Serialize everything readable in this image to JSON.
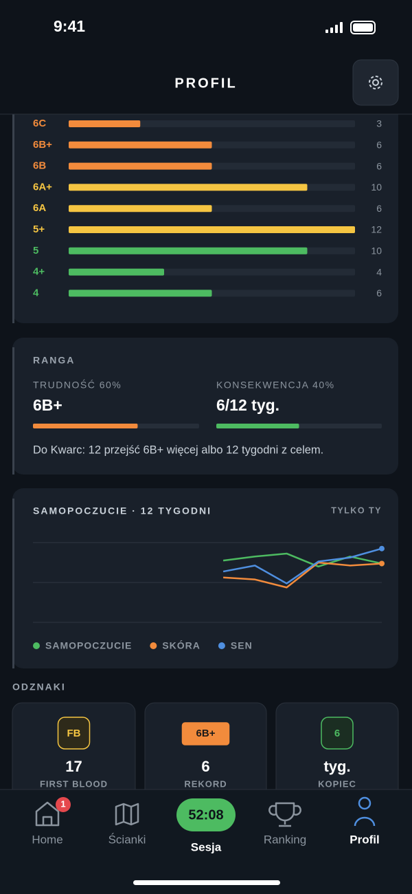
{
  "status": {
    "time": "9:41"
  },
  "header": {
    "title": "PROFIL"
  },
  "grades": [
    {
      "label": "6C",
      "value": 3,
      "color": "#f28b3c"
    },
    {
      "label": "6B+",
      "value": 6,
      "color": "#f28b3c"
    },
    {
      "label": "6B",
      "value": 6,
      "color": "#f28b3c"
    },
    {
      "label": "6A+",
      "value": 10,
      "color": "#f5c542"
    },
    {
      "label": "6A",
      "value": 6,
      "color": "#f5c542"
    },
    {
      "label": "5+",
      "value": 12,
      "color": "#f5c542"
    },
    {
      "label": "5",
      "value": 10,
      "color": "#4dbb61"
    },
    {
      "label": "4+",
      "value": 4,
      "color": "#4dbb61"
    },
    {
      "label": "4",
      "value": 6,
      "color": "#4dbb61"
    }
  ],
  "rank": {
    "title": "RANGA",
    "difficulty": {
      "label": "TRUDNOŚĆ 60%",
      "value": "6B+",
      "progress": 0.63,
      "color": "#f28b3c"
    },
    "consistency": {
      "label": "KONSEKWENCJA 40%",
      "value": "6/12 tyg.",
      "progress": 0.5,
      "color": "#4dbb61"
    },
    "note": "Do Kwarc: 12 przejść 6B+ więcej albo 12 tygodni z celem."
  },
  "wellbeing": {
    "title": "SAMOPOCZUCIE · 12 TYGODNI",
    "badge": "TYLKO TY",
    "chart_data": {
      "type": "line",
      "ylim": [
        1,
        5
      ],
      "yticks": [
        1,
        3,
        5
      ],
      "grid": true,
      "series": [
        {
          "name": "SAMOPOCZUCIE",
          "color": "#4dbb61",
          "values": [
            null,
            null,
            null,
            null,
            null,
            null,
            4.1,
            4.3,
            4.45,
            3.8,
            4.3,
            3.95
          ]
        },
        {
          "name": "SKÓRA",
          "color": "#f28b3c",
          "values": [
            null,
            null,
            null,
            null,
            null,
            null,
            3.25,
            3.15,
            2.75,
            4.0,
            3.85,
            3.95
          ]
        },
        {
          "name": "SEN",
          "color": "#4f8fe0",
          "values": [
            null,
            null,
            null,
            null,
            null,
            null,
            3.55,
            3.85,
            2.95,
            4.05,
            4.25,
            4.7
          ]
        }
      ]
    }
  },
  "badges": {
    "title": "ODZNAKI",
    "items": [
      {
        "icon": "FB",
        "value": "17",
        "label": "FIRST BLOOD"
      },
      {
        "icon": "6B+",
        "value": "6",
        "label": "REKORD"
      },
      {
        "icon": "6",
        "value": "tyg.",
        "label": "KOPIEC"
      }
    ]
  },
  "nav": {
    "items": [
      {
        "label": "Home",
        "badge": "1"
      },
      {
        "label": "Ścianki"
      },
      {
        "label": "Sesja",
        "timer": "52:08"
      },
      {
        "label": "Ranking"
      },
      {
        "label": "Profil"
      }
    ]
  }
}
